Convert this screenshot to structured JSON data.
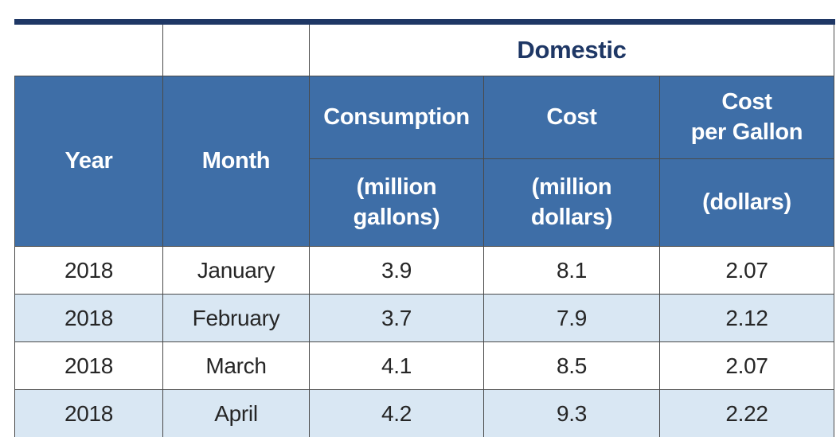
{
  "colors": {
    "top_bar": "#1E3765",
    "header_bg": "#3E6EA7",
    "header_text": "#FFFFFF",
    "group_header_text": "#1E3765",
    "row_bg": "#FFFFFF",
    "row_alt_bg": "#D9E7F3",
    "grid_line": "#4A4A4A",
    "data_text": "#262626"
  },
  "table": {
    "group_header": "Domestic",
    "headers": {
      "year": "Year",
      "month": "Month",
      "consumption": "Consumption",
      "cost": "Cost",
      "cost_per_gallon": "Cost\nper Gallon"
    },
    "units": {
      "consumption": "(million\ngallons)",
      "cost": "(million\ndollars)",
      "cost_per_gallon": "(dollars)"
    },
    "rows": [
      [
        "2018",
        "January",
        "3.9",
        "8.1",
        "2.07"
      ],
      [
        "2018",
        "February",
        "3.7",
        "7.9",
        "2.12"
      ],
      [
        "2018",
        "March",
        "4.1",
        "8.5",
        "2.07"
      ],
      [
        "2018",
        "April",
        "4.2",
        "9.3",
        "2.22"
      ]
    ]
  },
  "chart_data": {
    "type": "table",
    "title": "Domestic",
    "columns": [
      "Year",
      "Month",
      "Consumption (million gallons)",
      "Cost (million dollars)",
      "Cost per Gallon (dollars)"
    ],
    "rows": [
      [
        2018,
        "January",
        3.9,
        8.1,
        2.07
      ],
      [
        2018,
        "February",
        3.7,
        7.9,
        2.12
      ],
      [
        2018,
        "March",
        4.1,
        8.5,
        2.07
      ],
      [
        2018,
        "April",
        4.2,
        9.3,
        2.22
      ]
    ]
  }
}
